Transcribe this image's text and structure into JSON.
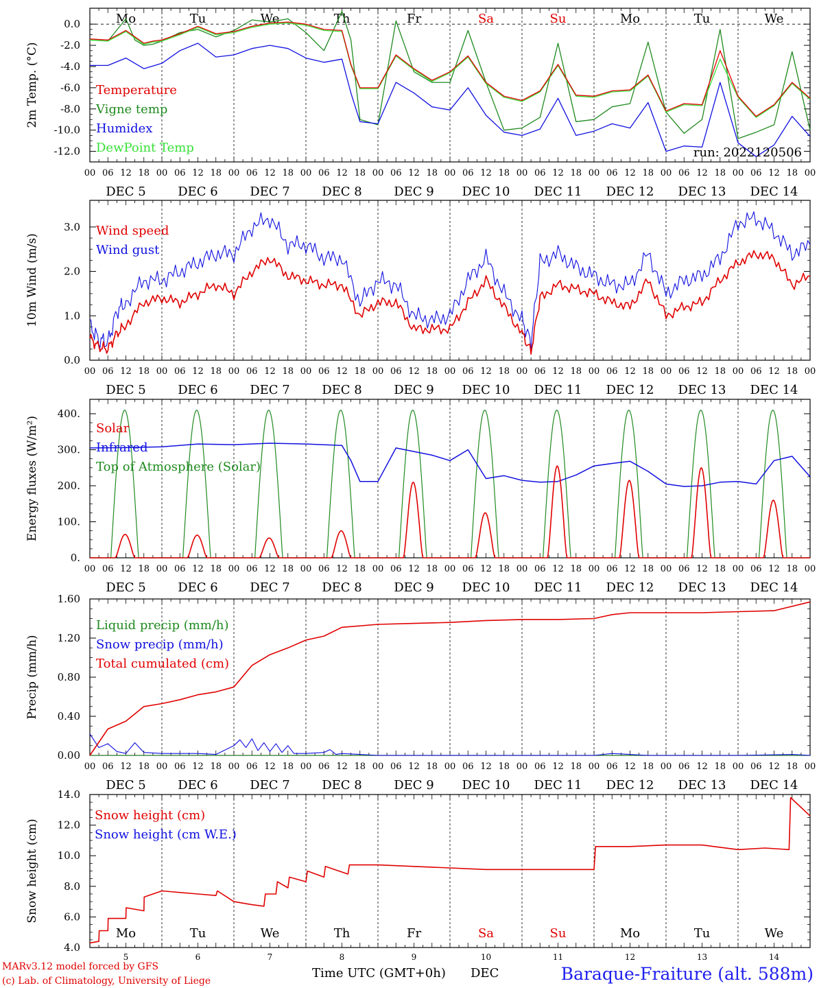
{
  "run_label": "run: 2022120506",
  "footer": {
    "credit_model": "MARv3.12 model forced by GFS",
    "credit_lab": "(c) Lab. of Climatology, University of Liege",
    "time_axis_label": "Time UTC (GMT+0h)",
    "month_label": "DEC",
    "station": "Baraque-Fraiture (alt. 588m)"
  },
  "colors": {
    "temperature": "#e00000",
    "vigne": "#1f8a1f",
    "humidex": "#1010e0",
    "dewpoint": "#38e038",
    "weekend": "#e00000",
    "station": "#2020ee",
    "credit": "#e00000"
  },
  "days": {
    "weekdays": [
      "Mo",
      "Tu",
      "We",
      "Th",
      "Fr",
      "Sa",
      "Su",
      "Mo",
      "Tu",
      "We"
    ],
    "weekend_flags": [
      false,
      false,
      false,
      false,
      false,
      true,
      true,
      false,
      false,
      false
    ],
    "dates": [
      "DEC  5",
      "DEC  6",
      "DEC  7",
      "DEC  8",
      "DEC  9",
      "DEC 10",
      "DEC 11",
      "DEC 12",
      "DEC 13",
      "DEC 14"
    ],
    "numbers": [
      "5",
      "6",
      "7",
      "8",
      "9",
      "10",
      "11",
      "12",
      "13",
      "14"
    ],
    "hour_ticks": [
      "00",
      "06",
      "12",
      "18"
    ],
    "end_hour": "00"
  },
  "chart_data": [
    {
      "type": "line",
      "ylabel": "2m Temp. (°C)",
      "ylim": [
        -13,
        1.5
      ],
      "yticks": [
        "0.0",
        "-2.0",
        "-4.0",
        "-6.0",
        "-8.0",
        "-10.0",
        "-12.0"
      ],
      "ytick_values": [
        0,
        -2,
        -4,
        -6,
        -8,
        -10,
        -12
      ],
      "x_unit": "hours since DEC 5 00 UTC",
      "zero_line": true,
      "legend_position": "left",
      "series": [
        {
          "name": "Temperature",
          "color": "#e00000",
          "x": [
            0,
            6,
            12,
            15,
            18,
            21,
            24,
            30,
            36,
            42,
            48,
            54,
            60,
            66,
            72,
            78,
            84,
            87,
            90,
            96,
            102,
            108,
            114,
            120,
            126,
            132,
            138,
            144,
            150,
            156,
            162,
            168,
            174,
            180,
            186,
            192,
            198,
            204,
            210,
            216,
            222,
            228,
            234,
            240
          ],
          "y": [
            -1.4,
            -1.5,
            -0.6,
            -1.2,
            -1.8,
            -1.6,
            -1.5,
            -0.9,
            -0.2,
            -0.9,
            -0.7,
            -0.2,
            0.1,
            0.2,
            0.0,
            -0.5,
            -0.6,
            -3.8,
            -6.0,
            -6.0,
            -2.9,
            -4.2,
            -5.3,
            -4.5,
            -3.0,
            -5.5,
            -6.8,
            -7.2,
            -6.3,
            -3.8,
            -6.7,
            -6.8,
            -6.3,
            -6.2,
            -4.8,
            -8.2,
            -7.5,
            -7.6,
            -2.5,
            -6.8,
            -8.7,
            -7.6,
            -5.5,
            -7.0
          ]
        },
        {
          "name": "Vigne temp",
          "color": "#1f8a1f",
          "x": [
            0,
            6,
            12,
            15,
            18,
            21,
            24,
            30,
            36,
            42,
            48,
            54,
            60,
            66,
            72,
            78,
            84,
            87,
            90,
            96,
            102,
            108,
            114,
            120,
            126,
            132,
            138,
            144,
            150,
            156,
            162,
            168,
            174,
            180,
            186,
            192,
            198,
            204,
            210,
            216,
            222,
            228,
            234,
            240
          ],
          "y": [
            -1.5,
            -1.6,
            0.5,
            -1.5,
            -2.0,
            -1.9,
            -1.6,
            -0.8,
            -0.5,
            -1.2,
            -0.6,
            0.4,
            0.2,
            0.5,
            -0.8,
            -2.5,
            1.2,
            -1.5,
            -9.0,
            -9.5,
            0.3,
            -4.5,
            -5.5,
            -5.5,
            -0.6,
            -5.5,
            -10.0,
            -9.8,
            -8.8,
            -1.8,
            -9.2,
            -9.0,
            -7.8,
            -7.5,
            -1.7,
            -8.3,
            -10.3,
            -9.0,
            -0.5,
            -10.8,
            -10.2,
            -9.5,
            -2.6,
            -10.0
          ]
        },
        {
          "name": "Humidex",
          "color": "#1010e0",
          "x": [
            0,
            6,
            12,
            18,
            24,
            30,
            36,
            42,
            48,
            54,
            60,
            66,
            72,
            78,
            84,
            87,
            90,
            96,
            102,
            108,
            114,
            120,
            126,
            132,
            138,
            144,
            150,
            156,
            162,
            168,
            174,
            180,
            186,
            192,
            198,
            204,
            210,
            216,
            222,
            228,
            234,
            240
          ],
          "y": [
            -3.9,
            -3.9,
            -3.2,
            -4.2,
            -3.7,
            -2.5,
            -1.8,
            -3.1,
            -2.9,
            -2.3,
            -2.0,
            -2.3,
            -3.2,
            -3.6,
            -3.3,
            -6.5,
            -9.2,
            -9.4,
            -5.5,
            -6.5,
            -7.8,
            -8.1,
            -6.0,
            -8.6,
            -10.2,
            -10.5,
            -9.9,
            -7.0,
            -10.5,
            -10.1,
            -9.4,
            -9.8,
            -7.4,
            -12.0,
            -11.5,
            -11.6,
            -5.5,
            -11.2,
            -12.5,
            -11.4,
            -8.7,
            -10.6
          ]
        },
        {
          "name": "DewPoint Temp",
          "color": "#38e038",
          "x": [
            0,
            6,
            12,
            15,
            18,
            21,
            24,
            30,
            36,
            42,
            48,
            54,
            60,
            66,
            72,
            78,
            84,
            87,
            90,
            96,
            102,
            108,
            114,
            120,
            126,
            132,
            138,
            144,
            150,
            156,
            162,
            168,
            174,
            180,
            186,
            192,
            198,
            204,
            210,
            216,
            222,
            228,
            234,
            240
          ],
          "y": [
            -1.5,
            -1.6,
            -0.7,
            -1.3,
            -1.9,
            -1.7,
            -1.6,
            -1.0,
            -0.3,
            -1.0,
            -0.8,
            -0.3,
            0.0,
            0.1,
            -0.1,
            -0.6,
            -0.7,
            -3.9,
            -6.1,
            -6.1,
            -3.0,
            -4.3,
            -5.4,
            -4.6,
            -3.1,
            -5.6,
            -6.9,
            -7.3,
            -6.4,
            -3.9,
            -6.8,
            -6.9,
            -6.4,
            -6.3,
            -4.9,
            -8.3,
            -7.6,
            -7.7,
            -3.3,
            -6.9,
            -8.8,
            -7.7,
            -5.6,
            -7.1
          ]
        }
      ]
    },
    {
      "type": "line",
      "ylabel": "10m Wind (m/s)",
      "ylim": [
        0,
        3.6
      ],
      "yticks": [
        "0.0",
        "1.0",
        "2.0",
        "3.0"
      ],
      "ytick_values": [
        0,
        1,
        2,
        3
      ],
      "x_unit": "hours since DEC 5 00 UTC",
      "legend_position": "left",
      "series": [
        {
          "name": "Wind speed",
          "color": "#e00000",
          "x": [
            0,
            3,
            6,
            9,
            12,
            18,
            24,
            30,
            36,
            42,
            48,
            54,
            60,
            66,
            72,
            78,
            84,
            90,
            96,
            102,
            108,
            114,
            120,
            126,
            132,
            138,
            144,
            147,
            150,
            156,
            162,
            168,
            174,
            180,
            186,
            192,
            198,
            204,
            210,
            216,
            222,
            228,
            234,
            240
          ],
          "y": [
            0.5,
            0.3,
            0.25,
            0.6,
            0.8,
            1.3,
            1.4,
            1.3,
            1.5,
            1.7,
            1.5,
            2.0,
            2.3,
            1.9,
            1.8,
            1.7,
            1.7,
            1.0,
            1.3,
            1.3,
            0.7,
            0.7,
            0.7,
            1.3,
            1.8,
            1.2,
            0.6,
            0.2,
            1.4,
            1.7,
            1.6,
            1.5,
            1.3,
            1.2,
            1.8,
            1.0,
            1.2,
            1.3,
            1.8,
            2.2,
            2.4,
            2.3,
            1.7,
            1.9
          ]
        },
        {
          "name": "Wind gust",
          "color": "#1010e0",
          "x": [
            0,
            3,
            6,
            9,
            12,
            18,
            24,
            30,
            36,
            42,
            48,
            54,
            60,
            66,
            72,
            78,
            84,
            90,
            96,
            102,
            108,
            114,
            120,
            126,
            132,
            138,
            144,
            147,
            150,
            156,
            162,
            168,
            174,
            180,
            186,
            192,
            198,
            204,
            210,
            216,
            222,
            228,
            234,
            240
          ],
          "y": [
            0.8,
            0.45,
            0.4,
            1.1,
            1.3,
            1.8,
            1.8,
            2.0,
            2.2,
            2.4,
            2.4,
            3.0,
            3.2,
            2.6,
            2.6,
            2.3,
            2.3,
            1.3,
            1.8,
            1.7,
            1.0,
            0.9,
            1.0,
            1.8,
            2.3,
            1.5,
            0.9,
            0.4,
            2.2,
            2.4,
            2.1,
            1.9,
            1.7,
            1.7,
            2.4,
            1.5,
            1.8,
            1.9,
            2.3,
            3.1,
            3.2,
            2.9,
            2.4,
            2.6
          ]
        }
      ]
    },
    {
      "type": "line",
      "ylabel": "Energy fluxes (W/m²)",
      "ylim": [
        0,
        440
      ],
      "yticks": [
        "0.",
        "100.",
        "200.",
        "300.",
        "400."
      ],
      "ytick_values": [
        0,
        100,
        200,
        300,
        400
      ],
      "x_unit": "hours since DEC 5 00 UTC",
      "legend_position": "left",
      "series": [
        {
          "name": "Solar",
          "color": "#e00000",
          "daily_peaks": [
            65,
            63,
            55,
            75,
            210,
            125,
            255,
            215,
            250,
            160
          ]
        },
        {
          "name": "Infrared",
          "color": "#1010e0",
          "x": [
            0,
            12,
            24,
            36,
            48,
            60,
            72,
            84,
            87,
            90,
            96,
            102,
            108,
            114,
            120,
            126,
            132,
            138,
            144,
            150,
            156,
            162,
            168,
            174,
            180,
            186,
            192,
            198,
            204,
            210,
            216,
            222,
            228,
            234,
            240
          ],
          "y": [
            305,
            306,
            308,
            316,
            314,
            318,
            316,
            312,
            270,
            212,
            212,
            305,
            295,
            285,
            270,
            300,
            220,
            228,
            215,
            210,
            212,
            230,
            255,
            262,
            268,
            240,
            205,
            198,
            200,
            210,
            212,
            205,
            270,
            282,
            225
          ]
        },
        {
          "name": "Top of Atmosphere (Solar)",
          "color": "#1f8a1f",
          "daily_peak": 410
        }
      ]
    },
    {
      "type": "line",
      "ylabel": "Precip (mm/h)",
      "ylim": [
        0,
        1.6
      ],
      "yticks": [
        "0.00",
        "0.40",
        "0.80",
        "1.20",
        "1.60"
      ],
      "ytick_values": [
        0,
        0.4,
        0.8,
        1.2,
        1.6
      ],
      "x_unit": "hours since DEC 5 00 UTC",
      "legend_position": "left",
      "series": [
        {
          "name": "Liquid precip (mm/h)",
          "color": "#1f8a1f",
          "x": [
            0,
            240
          ],
          "y": [
            0,
            0
          ]
        },
        {
          "name": "Snow precip (mm/h)",
          "color": "#1010e0",
          "x": [
            0,
            3,
            6,
            9,
            12,
            15,
            18,
            24,
            30,
            36,
            42,
            48,
            50,
            52,
            54,
            56,
            58,
            60,
            62,
            64,
            66,
            68,
            72,
            78,
            80,
            82,
            84,
            90,
            96,
            120,
            168,
            174,
            180,
            186,
            192,
            216,
            234,
            240
          ],
          "y": [
            0.22,
            0.08,
            0.12,
            0.04,
            0.02,
            0.13,
            0.03,
            0.02,
            0.02,
            0.02,
            0.01,
            0.1,
            0.16,
            0.08,
            0.17,
            0.05,
            0.13,
            0.04,
            0.12,
            0.03,
            0.1,
            0.02,
            0.02,
            0.03,
            0.06,
            0.01,
            0.02,
            0.01,
            0.0,
            0.0,
            0.0,
            0.02,
            0.01,
            0.0,
            0.0,
            0.0,
            0.01,
            0.0
          ]
        },
        {
          "name": "Total cumulated (cm)",
          "color": "#e00000",
          "x": [
            0,
            6,
            12,
            18,
            24,
            30,
            36,
            42,
            48,
            54,
            60,
            66,
            72,
            78,
            84,
            96,
            108,
            120,
            132,
            144,
            156,
            168,
            174,
            180,
            192,
            204,
            216,
            228,
            240
          ],
          "y": [
            0.0,
            0.27,
            0.35,
            0.5,
            0.53,
            0.57,
            0.62,
            0.65,
            0.7,
            0.92,
            1.03,
            1.1,
            1.18,
            1.22,
            1.31,
            1.34,
            1.35,
            1.36,
            1.38,
            1.39,
            1.39,
            1.4,
            1.44,
            1.46,
            1.46,
            1.46,
            1.47,
            1.48,
            1.57
          ]
        }
      ]
    },
    {
      "type": "line",
      "ylabel": "Snow height (cm)",
      "ylim": [
        4,
        14
      ],
      "yticks": [
        "4.0",
        "6.0",
        "8.0",
        "10.0",
        "12.0",
        "14.0"
      ],
      "ytick_values": [
        4,
        6,
        8,
        10,
        12,
        14
      ],
      "x_unit": "hours since DEC 5 00 UTC",
      "legend_position": "left",
      "series": [
        {
          "name": "Snow height (cm)",
          "color": "#e00000",
          "x": [
            0,
            3,
            3.1,
            6,
            6.1,
            12,
            12.1,
            18,
            18.1,
            24,
            36,
            42,
            42.5,
            48,
            54,
            58,
            58.5,
            62,
            62.5,
            66,
            66.5,
            72,
            72.5,
            78,
            78.5,
            86,
            86.5,
            96,
            108,
            120,
            132,
            144,
            156,
            168,
            168.5,
            180,
            192,
            204,
            216,
            225,
            233,
            233.5,
            240
          ],
          "y": [
            4.3,
            4.4,
            5.1,
            5.1,
            5.9,
            5.9,
            6.6,
            6.4,
            7.3,
            7.7,
            7.5,
            7.4,
            7.7,
            7.0,
            6.8,
            6.7,
            7.5,
            7.5,
            8.3,
            7.9,
            8.6,
            8.3,
            9.0,
            8.6,
            9.3,
            8.8,
            9.4,
            9.4,
            9.3,
            9.2,
            9.1,
            9.1,
            9.1,
            9.1,
            10.6,
            10.6,
            10.7,
            10.7,
            10.4,
            10.5,
            10.4,
            13.8,
            12.6
          ]
        },
        {
          "name": "Snow height (cm W.E.)",
          "color": "#1010e0",
          "x": [],
          "y": []
        }
      ]
    }
  ]
}
